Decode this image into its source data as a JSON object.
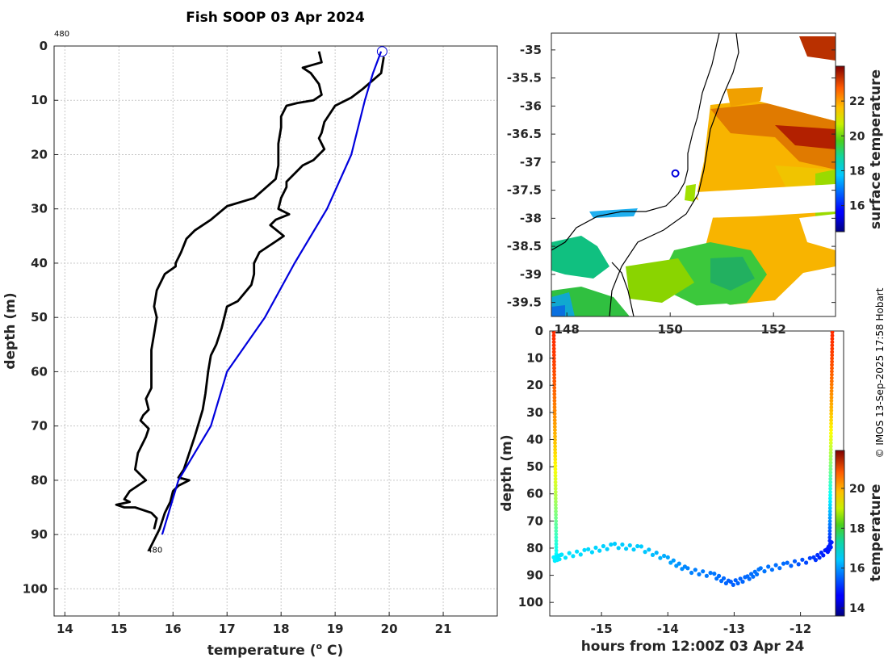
{
  "page": {
    "title": "Fish SOOP 03 Apr 2024",
    "credit": "© IMOS 13-Sep-2025 17:58 Hobart",
    "colors": {
      "profile_black": "#000000",
      "climatology_blue": "#0000dd",
      "grid": "#c8c8c8"
    }
  },
  "chart_data": [
    {
      "id": "profile",
      "type": "line",
      "title": "Fish SOOP 03 Apr 2024",
      "xlabel": "temperature (",
      "xlabel_unit": "o",
      "xlabel_suffix": " C)",
      "ylabel": "depth (m)",
      "xlim": [
        13.8,
        22.0
      ],
      "ylim": [
        105,
        0
      ],
      "xticks": [
        14,
        15,
        16,
        17,
        18,
        19,
        20,
        21
      ],
      "yticks": [
        0,
        10,
        20,
        30,
        40,
        50,
        60,
        70,
        80,
        90,
        100
      ],
      "annotations": {
        "top_label": "480",
        "bottom_label": "480",
        "marker": [
          19.87,
          1
        ]
      },
      "series": [
        {
          "name": "profile-left",
          "points": [
            [
              18.7,
              1
            ],
            [
              18.75,
              3
            ],
            [
              18.4,
              4
            ],
            [
              18.55,
              5
            ],
            [
              18.7,
              7
            ],
            [
              18.75,
              9
            ],
            [
              18.6,
              10
            ],
            [
              18.3,
              10.5
            ],
            [
              18.1,
              11
            ],
            [
              18.0,
              13
            ],
            [
              18.0,
              15
            ],
            [
              17.95,
              18
            ],
            [
              17.95,
              22
            ],
            [
              17.9,
              24.5
            ],
            [
              17.5,
              28
            ],
            [
              17.0,
              29.5
            ],
            [
              16.7,
              32
            ],
            [
              16.4,
              34
            ],
            [
              16.25,
              35.5
            ],
            [
              16.15,
              38
            ],
            [
              16.05,
              40
            ],
            [
              16.05,
              40.6
            ],
            [
              15.85,
              42
            ],
            [
              15.7,
              45
            ],
            [
              15.65,
              48
            ],
            [
              15.7,
              50
            ],
            [
              15.65,
              53
            ],
            [
              15.6,
              56
            ],
            [
              15.6,
              60
            ],
            [
              15.6,
              63
            ],
            [
              15.5,
              65
            ],
            [
              15.55,
              67
            ],
            [
              15.45,
              68
            ],
            [
              15.4,
              69
            ],
            [
              15.55,
              70.5
            ],
            [
              15.5,
              72
            ],
            [
              15.35,
              75
            ],
            [
              15.3,
              78
            ],
            [
              15.5,
              80
            ],
            [
              15.2,
              82
            ],
            [
              15.1,
              83.5
            ],
            [
              15.2,
              84
            ],
            [
              14.95,
              84.5
            ],
            [
              15.1,
              85
            ],
            [
              15.3,
              85
            ],
            [
              15.6,
              86
            ],
            [
              15.7,
              87
            ],
            [
              15.65,
              89
            ]
          ]
        },
        {
          "name": "profile-right",
          "points": [
            [
              19.9,
              2
            ],
            [
              19.85,
              5
            ],
            [
              19.5,
              8
            ],
            [
              19.3,
              9.5
            ],
            [
              19.0,
              11
            ],
            [
              18.9,
              12.5
            ],
            [
              18.8,
              14
            ],
            [
              18.75,
              16
            ],
            [
              18.7,
              17
            ],
            [
              18.8,
              19
            ],
            [
              18.6,
              21
            ],
            [
              18.4,
              22
            ],
            [
              18.3,
              23
            ],
            [
              18.1,
              25
            ],
            [
              18.1,
              26
            ],
            [
              18.0,
              28
            ],
            [
              17.95,
              30
            ],
            [
              18.15,
              31
            ],
            [
              17.9,
              32
            ],
            [
              17.8,
              33
            ],
            [
              18.05,
              35
            ],
            [
              17.9,
              36
            ],
            [
              17.6,
              38
            ],
            [
              17.5,
              40
            ],
            [
              17.5,
              42
            ],
            [
              17.45,
              44
            ],
            [
              17.2,
              47
            ],
            [
              17.0,
              48
            ],
            [
              16.9,
              52
            ],
            [
              16.8,
              55
            ],
            [
              16.7,
              57
            ],
            [
              16.65,
              60
            ],
            [
              16.6,
              64
            ],
            [
              16.55,
              67
            ],
            [
              16.4,
              72
            ],
            [
              16.3,
              75
            ],
            [
              16.2,
              78
            ],
            [
              16.1,
              79.5
            ],
            [
              16.3,
              80
            ],
            [
              16.1,
              81
            ],
            [
              16.0,
              82
            ],
            [
              15.95,
              84
            ],
            [
              15.85,
              86
            ],
            [
              15.75,
              89
            ],
            [
              15.65,
              91
            ],
            [
              15.55,
              93
            ]
          ]
        },
        {
          "name": "climatology",
          "points": [
            [
              19.85,
              1
            ],
            [
              19.7,
              5
            ],
            [
              19.55,
              10
            ],
            [
              19.3,
              20
            ],
            [
              18.85,
              30
            ],
            [
              18.25,
              40
            ],
            [
              17.7,
              50
            ],
            [
              17.0,
              60
            ],
            [
              16.7,
              70
            ],
            [
              16.4,
              75
            ],
            [
              16.1,
              80
            ],
            [
              15.8,
              90
            ]
          ]
        }
      ]
    },
    {
      "id": "sst-map",
      "type": "heatmap",
      "xlabel": "",
      "ylabel": "",
      "xlim": [
        147.7,
        153.2
      ],
      "ylim": [
        -39.75,
        -34.7
      ],
      "xticks": [
        148,
        150,
        152
      ],
      "yticks": [
        -35,
        -35.5,
        -36,
        -36.5,
        -37,
        -37.5,
        -38,
        -38.5,
        -39,
        -39.5
      ],
      "ship_position": [
        150.1,
        -37.2
      ]
    },
    {
      "id": "sst-colorbar",
      "type": "colorbar",
      "label": "surface temperature",
      "ticks": [
        16,
        18,
        20,
        22
      ],
      "range": [
        14.5,
        24.0
      ]
    },
    {
      "id": "section",
      "type": "scatter",
      "xlabel": "hours from 12:00Z 03 Apr 24",
      "ylabel": "depth (m)",
      "xlim": [
        -15.78,
        -11.35
      ],
      "ylim": [
        105,
        0
      ],
      "xticks": [
        -15,
        -14,
        -13,
        -12
      ],
      "yticks": [
        0,
        10,
        20,
        30,
        40,
        50,
        60,
        70,
        80,
        90,
        100
      ],
      "x_left": -15.72,
      "x_right": -11.52,
      "surface_temperature": 20.5,
      "bottom_path": [
        [
          -15.72,
          84
        ],
        [
          -15.6,
          83
        ],
        [
          -15.2,
          81
        ],
        [
          -14.8,
          79
        ],
        [
          -14.4,
          80
        ],
        [
          -14.0,
          84
        ],
        [
          -13.7,
          88
        ],
        [
          -13.3,
          90
        ],
        [
          -13.05,
          93
        ],
        [
          -12.8,
          91
        ],
        [
          -12.6,
          88
        ],
        [
          -12.2,
          86
        ],
        [
          -11.8,
          84
        ],
        [
          -11.6,
          81
        ],
        [
          -11.52,
          78
        ]
      ],
      "bottom_temperature": [
        16.6,
        16.5,
        16.4,
        16.3,
        16.3,
        16.0,
        15.7,
        15.6,
        15.4,
        15.5,
        15.6,
        15.5,
        15.1,
        14.8,
        14.9
      ]
    },
    {
      "id": "section-colorbar",
      "type": "colorbar",
      "label": "temperature",
      "ticks": [
        14,
        16,
        18,
        20
      ],
      "range": [
        13.6,
        21.9
      ]
    }
  ]
}
